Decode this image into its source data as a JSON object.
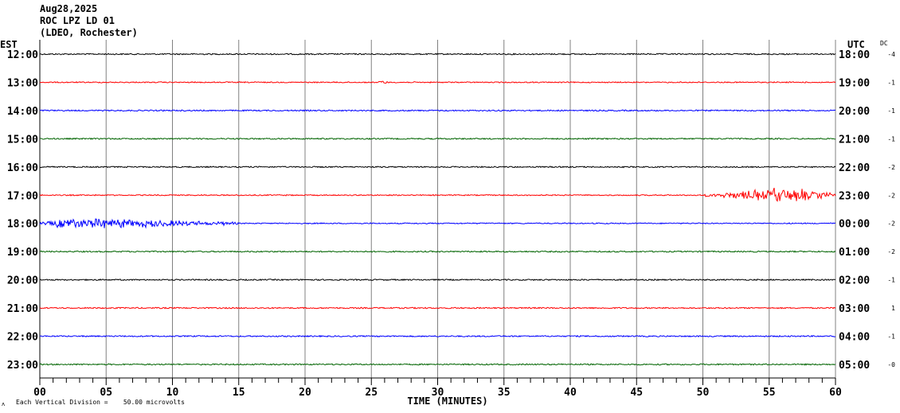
{
  "header": {
    "date": "Aug28,2025",
    "station": "ROC LPZ LD 01",
    "network": "(LDEO, Rochester)"
  },
  "chart_data": {
    "type": "line",
    "subtype": "helicorder",
    "left_axis_label": "EST",
    "right_axis_label": "UTC",
    "dc_label": "DC",
    "xlabel": "TIME (MINUTES)",
    "xlim": [
      0,
      60
    ],
    "x_ticks": [
      "00",
      "05",
      "10",
      "15",
      "20",
      "25",
      "30",
      "35",
      "40",
      "45",
      "50",
      "55",
      "60"
    ],
    "scale_note": "Each Vertical Division =    50.00 microvolts",
    "corner_mark": "ʌ",
    "rows": [
      {
        "est": "12:00",
        "utc": "18:00",
        "dc": "-4",
        "color": "#000000"
      },
      {
        "est": "13:00",
        "utc": "19:00",
        "dc": "-1",
        "color": "#ff0000"
      },
      {
        "est": "14:00",
        "utc": "20:00",
        "dc": "-1",
        "color": "#0000ff"
      },
      {
        "est": "15:00",
        "utc": "21:00",
        "dc": "-1",
        "color": "#006400"
      },
      {
        "est": "16:00",
        "utc": "22:00",
        "dc": "-2",
        "color": "#000000"
      },
      {
        "est": "17:00",
        "utc": "23:00",
        "dc": "-2",
        "color": "#ff0000"
      },
      {
        "est": "18:00",
        "utc": "00:00",
        "dc": "-2",
        "color": "#0000ff"
      },
      {
        "est": "19:00",
        "utc": "01:00",
        "dc": "-2",
        "color": "#006400"
      },
      {
        "est": "20:00",
        "utc": "02:00",
        "dc": "-1",
        "color": "#000000"
      },
      {
        "est": "21:00",
        "utc": "03:00",
        "dc": "1",
        "color": "#ff0000"
      },
      {
        "est": "22:00",
        "utc": "04:00",
        "dc": "-1",
        "color": "#0000ff"
      },
      {
        "est": "23:00",
        "utc": "05:00",
        "dc": "-0",
        "color": "#006400"
      }
    ],
    "events": [
      {
        "row": 5,
        "start_min": 50,
        "peak_min": 56,
        "end_min": 60,
        "amplitude": 12
      },
      {
        "row": 6,
        "start_min": 0,
        "peak_min": 2,
        "end_min": 15,
        "amplitude": 9
      },
      {
        "row": 1,
        "start_min": 25.5,
        "peak_min": 25.8,
        "end_min": 26.3,
        "amplitude": 3
      }
    ]
  }
}
